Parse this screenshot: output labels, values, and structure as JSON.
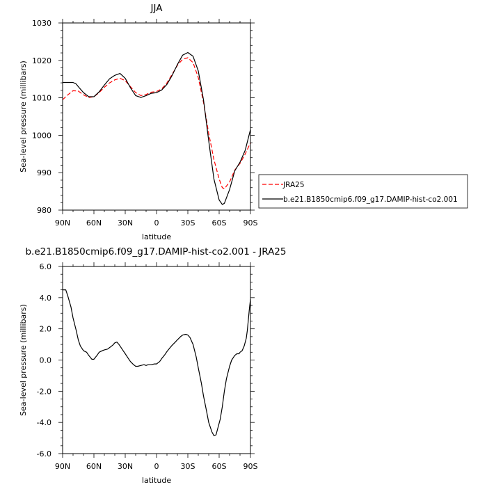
{
  "chart_data": [
    {
      "type": "line",
      "title": "JJA",
      "xlabel": "latitude",
      "ylabel": "Sea-level pressure (millibars)",
      "x_ticks": [
        "90N",
        "60N",
        "30N",
        "0",
        "30S",
        "60S",
        "90S"
      ],
      "xlim": [
        90,
        -90
      ],
      "ylim": [
        980,
        1030
      ],
      "y_ticks": [
        "980",
        "990",
        "1000",
        "1010",
        "1020",
        "1030"
      ],
      "legend_position": "right",
      "series": [
        {
          "name": "JRA25",
          "color": "#ff0000",
          "dash": "dashed",
          "x": [
            90,
            85,
            80,
            75,
            70,
            65,
            60,
            55,
            50,
            45,
            40,
            35,
            30,
            25,
            20,
            15,
            10,
            5,
            0,
            -5,
            -10,
            -15,
            -20,
            -25,
            -30,
            -35,
            -40,
            -45,
            -50,
            -55,
            -60,
            -63,
            -65,
            -70,
            -75,
            -80,
            -85,
            -90
          ],
          "y": [
            1009.5,
            1010.8,
            1011.9,
            1011.8,
            1010.8,
            1010.1,
            1010.3,
            1011.4,
            1012.8,
            1014.0,
            1014.8,
            1015.2,
            1014.6,
            1013.0,
            1011.4,
            1010.6,
            1010.9,
            1011.5,
            1011.7,
            1012.4,
            1014.0,
            1016.3,
            1018.7,
            1020.3,
            1020.7,
            1019.4,
            1015.4,
            1008.8,
            1000.5,
            993.5,
            988.3,
            986.0,
            985.7,
            987.5,
            990.7,
            992.5,
            995.0,
            998.0
          ]
        },
        {
          "name": "b.e21.B1850cmip6.f09_g17.DAMIP-hist-co2.001",
          "color": "#000000",
          "dash": "solid",
          "x": [
            90,
            85,
            80,
            77,
            75,
            70,
            65,
            60,
            55,
            50,
            45,
            40,
            35,
            30,
            25,
            20,
            15,
            10,
            5,
            0,
            -5,
            -10,
            -15,
            -20,
            -25,
            -30,
            -35,
            -40,
            -45,
            -50,
            -55,
            -60,
            -63,
            -65,
            -70,
            -75,
            -80,
            -85,
            -90
          ],
          "y": [
            1014.1,
            1014.1,
            1014.1,
            1013.7,
            1013.0,
            1011.4,
            1010.3,
            1010.3,
            1011.6,
            1013.4,
            1015.1,
            1016.0,
            1016.5,
            1015.2,
            1012.7,
            1010.6,
            1010.1,
            1010.6,
            1011.2,
            1011.4,
            1012.1,
            1013.6,
            1016.0,
            1018.9,
            1021.4,
            1022.1,
            1021.1,
            1017.2,
            1009.5,
            998.5,
            988.3,
            982.7,
            981.5,
            981.8,
            985.5,
            990.5,
            992.8,
            996.0,
            1001.5
          ]
        }
      ]
    },
    {
      "type": "line",
      "title": "b.e21.B1850cmip6.f09_g17.DAMIP-hist-co2.001 - JRA25",
      "xlabel": "latitude",
      "ylabel": "Sea-level pressure (millibars)",
      "x_ticks": [
        "90N",
        "60N",
        "30N",
        "0",
        "30S",
        "60S",
        "90S"
      ],
      "xlim": [
        90,
        -90
      ],
      "ylim": [
        -6,
        6
      ],
      "y_ticks": [
        "-6.0",
        "-4.0",
        "-2.0",
        "0.0",
        "2.0",
        "4.0",
        "6.0"
      ],
      "series": [
        {
          "color": "#000000",
          "x": [
            90,
            87,
            85,
            82,
            80,
            77,
            75,
            73,
            70,
            67,
            65,
            62,
            60,
            57,
            55,
            52,
            50,
            47,
            45,
            42,
            40,
            38,
            36,
            34,
            32,
            30,
            27,
            25,
            22,
            20,
            18,
            15,
            12,
            10,
            8,
            5,
            2,
            0,
            -3,
            -5,
            -8,
            -10,
            -13,
            -15,
            -18,
            -20,
            -23,
            -25,
            -28,
            -30,
            -32,
            -35,
            -38,
            -40,
            -43,
            -45,
            -48,
            -50,
            -53,
            -55,
            -57,
            -59,
            -61,
            -63,
            -65,
            -67,
            -70,
            -72,
            -75,
            -77,
            -79,
            -80,
            -82,
            -84,
            -86,
            -87,
            -88,
            -89,
            -90
          ],
          "y": [
            4.5,
            4.5,
            4.1,
            3.4,
            2.7,
            1.9,
            1.3,
            0.9,
            0.6,
            0.5,
            0.3,
            0.05,
            0.05,
            0.3,
            0.5,
            0.6,
            0.65,
            0.7,
            0.8,
            0.95,
            1.1,
            1.15,
            1.0,
            0.8,
            0.6,
            0.4,
            0.1,
            -0.1,
            -0.3,
            -0.4,
            -0.4,
            -0.35,
            -0.3,
            -0.35,
            -0.3,
            -0.3,
            -0.25,
            -0.25,
            -0.1,
            0.1,
            0.35,
            0.55,
            0.8,
            0.95,
            1.15,
            1.3,
            1.5,
            1.6,
            1.65,
            1.6,
            1.45,
            1.0,
            0.2,
            -0.5,
            -1.5,
            -2.3,
            -3.3,
            -4.0,
            -4.6,
            -4.85,
            -4.8,
            -4.3,
            -3.8,
            -3.0,
            -2.0,
            -1.2,
            -0.4,
            0.0,
            0.3,
            0.4,
            0.4,
            0.5,
            0.6,
            0.9,
            1.4,
            1.9,
            2.6,
            3.3,
            3.9
          ]
        }
      ]
    }
  ]
}
